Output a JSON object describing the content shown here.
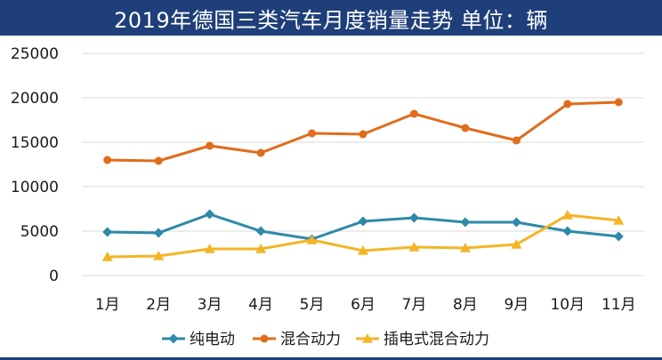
{
  "chart_data": {
    "type": "line",
    "title": "2019年德国三类汽车月度销量走势  单位：辆",
    "categories": [
      "1月",
      "2月",
      "3月",
      "4月",
      "5月",
      "6月",
      "7月",
      "8月",
      "9月",
      "10月",
      "11月"
    ],
    "ylim": [
      0,
      25000
    ],
    "yticks": [
      0,
      5000,
      10000,
      15000,
      20000,
      25000
    ],
    "grid": true,
    "legend_position": "bottom",
    "series": [
      {
        "name": "纯电动",
        "color": "#2e8aa8",
        "marker": "diamond",
        "values": [
          4900,
          4800,
          6900,
          5000,
          4100,
          6100,
          6500,
          6000,
          6000,
          5000,
          4400
        ]
      },
      {
        "name": "混合动力",
        "color": "#e06c1c",
        "marker": "circle",
        "values": [
          13000,
          12900,
          14600,
          13800,
          16000,
          15900,
          18200,
          16600,
          15200,
          19300,
          19500
        ]
      },
      {
        "name": "插电式混合动力",
        "color": "#f3b526",
        "marker": "triangle",
        "values": [
          2100,
          2200,
          3000,
          3000,
          4000,
          2800,
          3200,
          3100,
          3500,
          6800,
          6200
        ]
      }
    ]
  }
}
